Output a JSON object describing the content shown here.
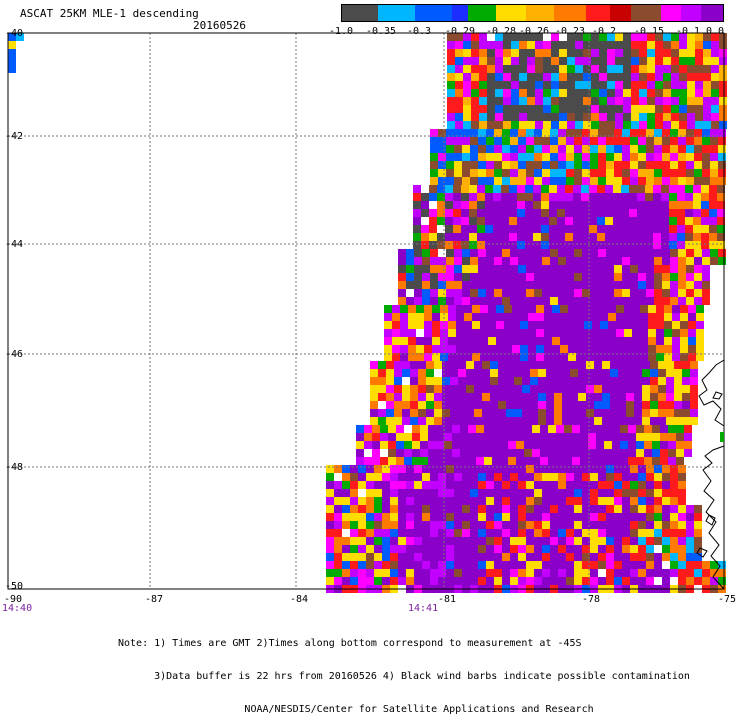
{
  "header": {
    "title": "ASCAT 25KM MLE-1 descending",
    "date": "20160526"
  },
  "scale": {
    "colors": [
      "#4b4b4b",
      "#00b7ff",
      "#005bff",
      "#1d2cff",
      "#00aa00",
      "#ffdd00",
      "#ffb000",
      "#ff7a00",
      "#ff1b1b",
      "#c80000",
      "#8a4b2f",
      "#ff00ff",
      "#c200ff",
      "#8a00c8"
    ],
    "labels": [
      "-1.0",
      "-0.35",
      "-0.3",
      "-0.29",
      "-0.28",
      "-0.26",
      "-0.23",
      "-0.2",
      "-0.15",
      "-0.1",
      "0.0"
    ]
  },
  "axes": {
    "x_labels": [
      "-90",
      "-87",
      "-84",
      "-81",
      "-78",
      "-75"
    ],
    "y_labels": [
      "-40",
      "-42",
      "-44",
      "-46",
      "-48",
      "-50"
    ]
  },
  "times": {
    "left": "14:40",
    "center": "14:41"
  },
  "notes": {
    "line1": "Note: 1) Times are GMT 2)Times along bottom correspond to measurement at -45S",
    "line2": "      3)Data buffer is 22 hrs from 20160526 4) Black wind barbs indicate possible contamination",
    "line3": "                     NOAA/NESDIS/Center for Satellite Applications and Research"
  },
  "colors": {
    "purple_main": "#8a00c8",
    "magenta": "#c200ff",
    "grid": "#777777",
    "black": "#000000"
  }
}
